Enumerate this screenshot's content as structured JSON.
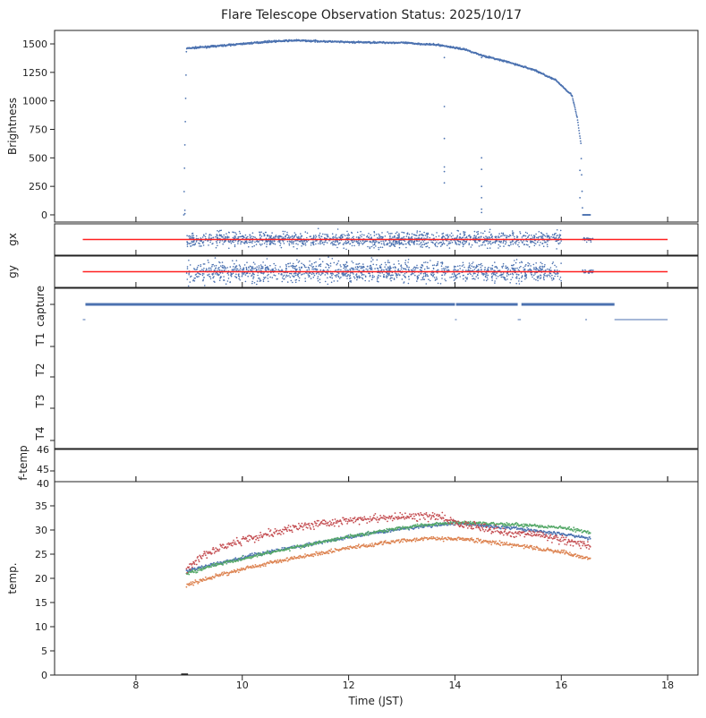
{
  "chart_data": {
    "type": "scatter",
    "title": "Flare Telescope Observation Status: 2025/10/17",
    "xlabel": "Time (JST)",
    "xlim": [
      6.47,
      18.57
    ],
    "xticks": [
      8,
      10,
      12,
      14,
      16,
      18
    ],
    "panels": [
      {
        "name": "brightness",
        "ylabel": "Brightness",
        "ylim": [
          -63,
          1618
        ],
        "yticks": [
          0,
          250,
          500,
          750,
          1000,
          1250,
          1500
        ],
        "series": [
          {
            "name": "brightness",
            "color": "#4c72b0",
            "profile": [
              [
                8.9,
                0
              ],
              [
                8.95,
                1460
              ],
              [
                9.5,
                1480
              ],
              [
                10.5,
                1520
              ],
              [
                11,
                1530
              ],
              [
                12,
                1515
              ],
              [
                13,
                1510
              ],
              [
                13.7,
                1490
              ],
              [
                14.2,
                1450
              ],
              [
                14.5,
                1400
              ],
              [
                15,
                1340
              ],
              [
                15.5,
                1270
              ],
              [
                15.9,
                1180
              ],
              [
                16.2,
                1050
              ],
              [
                16.3,
                850
              ],
              [
                16.37,
                620
              ],
              [
                16.4,
                0
              ],
              [
                16.55,
                0
              ]
            ],
            "outliers": [
              [
                8.92,
                40
              ],
              [
                8.92,
                10
              ],
              [
                13.8,
                950
              ],
              [
                13.8,
                670
              ],
              [
                13.8,
                420
              ],
              [
                13.8,
                380
              ],
              [
                13.8,
                280
              ],
              [
                13.8,
                1380
              ],
              [
                14.5,
                500
              ],
              [
                14.5,
                400
              ],
              [
                14.5,
                250
              ],
              [
                14.5,
                150
              ],
              [
                14.5,
                50
              ],
              [
                14.5,
                20
              ],
              [
                14.5,
                1380
              ],
              [
                16.35,
                390
              ],
              [
                16.35,
                150
              ]
            ]
          }
        ]
      },
      {
        "name": "gx",
        "ylabel": "gx",
        "reference_line": {
          "color": "#ff2020",
          "x": [
            7.0,
            18.0
          ]
        },
        "series": [
          {
            "name": "gx",
            "color": "#4c72b0",
            "ranges": [
              [
                8.95,
                16.0
              ],
              [
                16.4,
                16.6
              ]
            ]
          }
        ]
      },
      {
        "name": "gy",
        "ylabel": "gy",
        "reference_line": {
          "color": "#ff2020",
          "x": [
            7.0,
            18.0
          ]
        },
        "series": [
          {
            "name": "gy",
            "color": "#4c72b0",
            "ranges": [
              [
                8.95,
                16.0
              ],
              [
                16.4,
                16.6
              ]
            ]
          }
        ]
      },
      {
        "name": "status",
        "ytick_labels": [
          "capture",
          "T1",
          "T2",
          "T3",
          "T4"
        ],
        "series": [
          {
            "name": "capture",
            "color": "#4c72b0",
            "upper_segments": [
              [
                7.05,
                14.0
              ],
              [
                14.02,
                15.18
              ],
              [
                15.25,
                17.0
              ]
            ],
            "lower_segments": [
              [
                7.0,
                7.05
              ],
              [
                14.0,
                14.01
              ],
              [
                15.18,
                15.24
              ],
              [
                16.45,
                16.46
              ],
              [
                17.0,
                18.0
              ]
            ]
          }
        ]
      },
      {
        "name": "f-temp",
        "ylabel": "f-temp",
        "ytick_labels": [
          "46",
          "45",
          "40"
        ]
      },
      {
        "name": "temp",
        "ylabel": "temp.",
        "ylim": [
          0,
          40
        ],
        "yticks": [
          0,
          5,
          10,
          15,
          20,
          25,
          30,
          35
        ],
        "series": [
          {
            "name": "T-blue",
            "color": "#4c72b0",
            "noise": 0.25,
            "profile": [
              [
                8.95,
                21.5
              ],
              [
                9.5,
                23
              ],
              [
                10.5,
                25.5
              ],
              [
                12,
                28.5
              ],
              [
                13,
                30.3
              ],
              [
                14,
                31.5
              ],
              [
                15,
                30.5
              ],
              [
                16,
                29.2
              ],
              [
                16.55,
                28.2
              ]
            ]
          },
          {
            "name": "T-orange",
            "color": "#dd8452",
            "noise": 0.3,
            "profile": [
              [
                8.95,
                18.5
              ],
              [
                9.5,
                20.5
              ],
              [
                10.5,
                23.2
              ],
              [
                12,
                26.3
              ],
              [
                13,
                27.8
              ],
              [
                13.6,
                28.3
              ],
              [
                14.3,
                28
              ],
              [
                15,
                27
              ],
              [
                16,
                25.5
              ],
              [
                16.55,
                24
              ]
            ]
          },
          {
            "name": "T-green",
            "color": "#55a868",
            "noise": 0.25,
            "profile": [
              [
                8.95,
                21
              ],
              [
                9.5,
                22.8
              ],
              [
                10.5,
                25.3
              ],
              [
                12,
                28.6
              ],
              [
                13,
                30.5
              ],
              [
                14,
                31.6
              ],
              [
                15,
                31.2
              ],
              [
                16,
                30.5
              ],
              [
                16.55,
                29.5
              ]
            ]
          },
          {
            "name": "T-red",
            "color": "#c44e52",
            "noise": 0.6,
            "profile": [
              [
                8.95,
                22
              ],
              [
                9.3,
                25
              ],
              [
                10,
                28
              ],
              [
                11,
                30.5
              ],
              [
                12,
                32
              ],
              [
                13,
                32.7
              ],
              [
                13.7,
                32.8
              ],
              [
                14,
                31.5
              ],
              [
                15,
                29.5
              ],
              [
                15.6,
                29
              ],
              [
                16,
                28
              ],
              [
                16.55,
                26.5
              ]
            ]
          }
        ],
        "marker_at_zero": {
          "x": [
            8.85,
            8.98
          ],
          "color": "#222222"
        }
      }
    ]
  }
}
